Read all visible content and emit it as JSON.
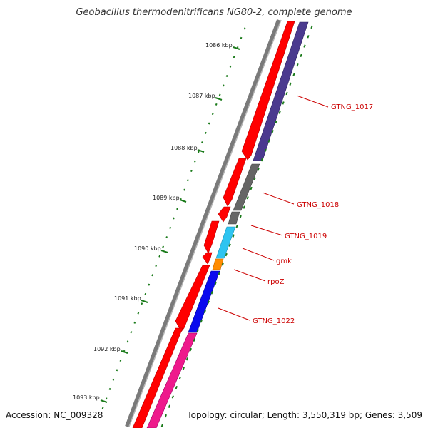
{
  "title": "Geobacillus thermodenitrificans NG80-2, complete genome",
  "footer": {
    "accession": "Accession: NC_009328",
    "stats": "Topology: circular; Length: 3,550,319 bp; Genes: 3,509"
  },
  "ruler": [
    "1086 kbp",
    "1087 kbp",
    "1088 kbp",
    "1089 kbp",
    "1090 kbp",
    "1091 kbp",
    "1092 kbp",
    "1093 kbp"
  ],
  "genes": [
    {
      "name": "GTNG_1017",
      "color": "#4b3a8f"
    },
    {
      "name": "GTNG_1018",
      "color": "#666666"
    },
    {
      "name": "GTNG_1019",
      "color": "#666666"
    },
    {
      "name": "gmk",
      "color": "#2ec4f0"
    },
    {
      "name": "rpoZ",
      "color": "#ff8c00"
    },
    {
      "name": "GTNG_1022",
      "color": "#0a0aee"
    }
  ],
  "colors": {
    "cds": "#ff0000",
    "backbone": "#808080",
    "ticks": "#1a7a1a",
    "label": "#cc0000",
    "gene_magenta": "#ee1a8c"
  }
}
